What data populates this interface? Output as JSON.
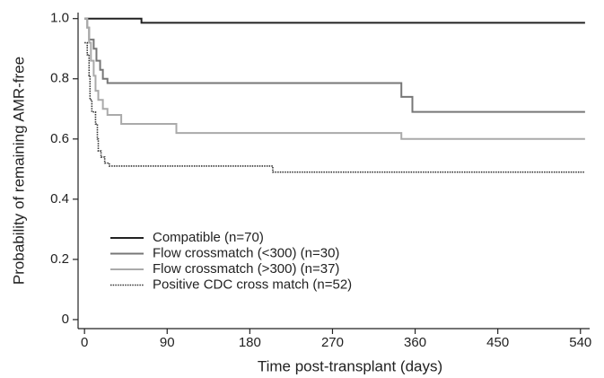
{
  "chart_data": {
    "type": "step",
    "xlabel": "Time post-transplant (days)",
    "ylabel": "Probability of remaining AMR-free",
    "xlim": [
      -7,
      550
    ],
    "ylim": [
      -0.03,
      1.02
    ],
    "xticks": [
      0,
      90,
      180,
      270,
      360,
      450,
      540
    ],
    "yticks": [
      0,
      0.2,
      0.4,
      0.6,
      0.8,
      {
        "value": 1,
        "label": "1.0"
      }
    ],
    "legend": "lower-left",
    "series": [
      {
        "name": "Compatible (n=70)",
        "color": "#222222",
        "dash": "solid",
        "x": [
          0,
          62,
          545
        ],
        "values": [
          1,
          0.986,
          0.986
        ]
      },
      {
        "name": "Flow crossmatch (<300) (n=30)",
        "color": "#777777",
        "dash": "solid",
        "x": [
          0,
          3,
          5,
          10,
          13,
          17,
          20,
          25,
          345,
          357,
          545
        ],
        "values": [
          1,
          0.97,
          0.93,
          0.9,
          0.86,
          0.83,
          0.8,
          0.786,
          0.74,
          0.69,
          0.69
        ]
      },
      {
        "name": "Flow crossmatch (>300) (n=37)",
        "color": "#aaaaaa",
        "dash": "solid",
        "x": [
          0,
          3,
          5,
          7,
          10,
          12,
          15,
          20,
          25,
          40,
          100,
          345,
          545
        ],
        "values": [
          1,
          0.97,
          0.92,
          0.86,
          0.81,
          0.76,
          0.73,
          0.7,
          0.68,
          0.65,
          0.62,
          0.6,
          0.6
        ]
      },
      {
        "name": "Positive CDC cross match (n=52)",
        "color": "#333333",
        "dash": "dotted",
        "x": [
          0,
          3,
          5,
          6,
          8,
          12,
          14,
          15,
          18,
          22,
          27,
          205,
          545
        ],
        "values": [
          0.92,
          0.88,
          0.81,
          0.73,
          0.69,
          0.65,
          0.6,
          0.56,
          0.54,
          0.52,
          0.51,
          0.49,
          0.49
        ]
      }
    ]
  }
}
